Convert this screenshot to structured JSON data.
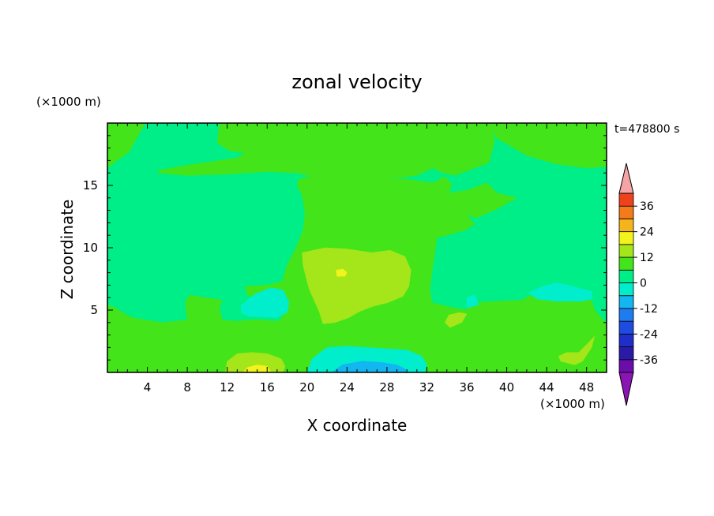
{
  "chart_data": {
    "type": "heatmap",
    "title": "zonal velocity",
    "xlabel": "X coordinate",
    "ylabel": "Z coordinate",
    "x_unit": "(×1000 m)",
    "y_unit": "(×1000 m)",
    "time_label": "t=478800 s",
    "xlim": [
      0,
      50
    ],
    "ylim": [
      0,
      20
    ],
    "x_ticks": [
      4,
      8,
      12,
      16,
      20,
      24,
      28,
      32,
      36,
      40,
      44,
      48
    ],
    "y_ticks": [
      5,
      10,
      15
    ],
    "colorbar": {
      "tick_labels": [
        "36",
        "24",
        "12",
        "0",
        "-12",
        "-24",
        "-36"
      ],
      "tick_values": [
        36,
        24,
        12,
        0,
        -12,
        -24,
        -36
      ],
      "levels": [
        -42,
        -36,
        -30,
        -24,
        -18,
        -12,
        -6,
        0,
        6,
        12,
        18,
        24,
        30,
        36,
        42
      ],
      "colors": [
        "#6a0dab",
        "#2a1aa8",
        "#1f2ec8",
        "#1e4be0",
        "#1e7cf0",
        "#12b6f0",
        "#00eecc",
        "#00ee88",
        "#44e41a",
        "#a4e61a",
        "#f2f21c",
        "#f6b41c",
        "#f47a1c",
        "#ee421c",
        "#e01c1c",
        "#f4a4a4"
      ],
      "under_color": "#8a14b4",
      "over_color": "#f4a4a4"
    },
    "regions": [
      {
        "level": "0 to 6",
        "color": "#44e41a",
        "polygon": [
          [
            0,
            16.4
          ],
          [
            0.8,
            16.9
          ],
          [
            2.2,
            17.7
          ],
          [
            3.0,
            18.9
          ],
          [
            3.8,
            20
          ],
          [
            0,
            20
          ]
        ]
      },
      {
        "level": "0 to 6",
        "color": "#44e41a",
        "polygon": [
          [
            11.2,
            20
          ],
          [
            11.0,
            18.4
          ],
          [
            12.2,
            17.8
          ],
          [
            13.8,
            17.6
          ],
          [
            13.0,
            17.2
          ],
          [
            7.8,
            16.6
          ],
          [
            5.2,
            16.2
          ],
          [
            5.0,
            16.0
          ],
          [
            8.0,
            15.8
          ],
          [
            12.0,
            15.9
          ],
          [
            16.0,
            16.1
          ],
          [
            19.0,
            16.0
          ],
          [
            20.0,
            15.8
          ],
          [
            26.0,
            15.6
          ],
          [
            29.0,
            15.6
          ],
          [
            31.0,
            15.8
          ],
          [
            32.6,
            16.4
          ],
          [
            33.6,
            16.0
          ],
          [
            34.8,
            15.8
          ],
          [
            36.8,
            16.4
          ],
          [
            38.2,
            16.8
          ],
          [
            38.4,
            17.4
          ],
          [
            38.8,
            18.6
          ],
          [
            38.4,
            19.6
          ],
          [
            38.2,
            20
          ]
        ]
      },
      {
        "level": "0 to 6",
        "color": "#44e41a",
        "polygon": [
          [
            38.0,
            20
          ],
          [
            39.0,
            18.8
          ],
          [
            42.0,
            17.4
          ],
          [
            45.0,
            16.7
          ],
          [
            48.0,
            16.4
          ],
          [
            50,
            16.5
          ],
          [
            50,
            20
          ]
        ]
      },
      {
        "level": "0 to 6",
        "color": "#44e41a",
        "polygon": [
          [
            19.2,
            15.5
          ],
          [
            21.0,
            15.9
          ],
          [
            24.0,
            15.8
          ],
          [
            27.0,
            15.6
          ],
          [
            30.0,
            15.5
          ],
          [
            32.6,
            15.2
          ],
          [
            33.8,
            15.7
          ],
          [
            34.5,
            15.1
          ],
          [
            34.2,
            14.4
          ],
          [
            36.0,
            14.6
          ],
          [
            38.0,
            15.2
          ],
          [
            39.0,
            14.4
          ],
          [
            41.0,
            14.0
          ],
          [
            39.0,
            13.1
          ],
          [
            37.0,
            12.4
          ],
          [
            36.0,
            12.6
          ],
          [
            36.8,
            11.9
          ],
          [
            35.8,
            11.4
          ],
          [
            34.0,
            11.0
          ],
          [
            33.0,
            10.8
          ],
          [
            32.8,
            9.6
          ],
          [
            32.5,
            8.0
          ],
          [
            32.3,
            6.6
          ],
          [
            32.5,
            5.6
          ],
          [
            34.0,
            5.3
          ],
          [
            36.0,
            5.0
          ],
          [
            36.5,
            5.6
          ],
          [
            39.0,
            5.7
          ],
          [
            41.5,
            5.8
          ],
          [
            42.5,
            6.2
          ],
          [
            43.2,
            6.6
          ],
          [
            45.0,
            6.7
          ],
          [
            46.0,
            6.0
          ],
          [
            47.0,
            5.8
          ],
          [
            48.5,
            5.8
          ],
          [
            48.8,
            5.0
          ],
          [
            50,
            3.9
          ],
          [
            50,
            0
          ],
          [
            0,
            0
          ],
          [
            0,
            5.4
          ],
          [
            0.8,
            5.2
          ],
          [
            1.5,
            4.8
          ],
          [
            2.5,
            4.4
          ],
          [
            3.8,
            4.2
          ],
          [
            5.5,
            4.0
          ],
          [
            8.0,
            4.2
          ],
          [
            7.8,
            5.6
          ],
          [
            8.2,
            6.2
          ],
          [
            9.8,
            6.0
          ],
          [
            11.5,
            5.8
          ],
          [
            11.2,
            5.1
          ],
          [
            11.5,
            4.2
          ],
          [
            13.0,
            4.1
          ],
          [
            14.0,
            4.2
          ],
          [
            15.8,
            4.2
          ],
          [
            16.7,
            4.1
          ],
          [
            17.4,
            4.2
          ],
          [
            17.5,
            4.6
          ],
          [
            16.8,
            5.6
          ],
          [
            15.2,
            6.0
          ],
          [
            14.0,
            6.2
          ],
          [
            13.8,
            6.9
          ],
          [
            16.0,
            7.0
          ],
          [
            17.5,
            7.3
          ],
          [
            18.0,
            8.6
          ],
          [
            19.0,
            10.2
          ],
          [
            19.6,
            11.4
          ],
          [
            19.8,
            12.8
          ],
          [
            19.5,
            14.2
          ],
          [
            19.0,
            15.0
          ]
        ]
      },
      {
        "level": "6 to 12",
        "color": "#a4e61a",
        "polygon": [
          [
            19.5,
            9.6
          ],
          [
            21.8,
            10.0
          ],
          [
            24.0,
            9.9
          ],
          [
            26.5,
            9.6
          ],
          [
            28.3,
            9.8
          ],
          [
            29.8,
            9.3
          ],
          [
            30.4,
            8.2
          ],
          [
            30.2,
            6.9
          ],
          [
            29.6,
            6.1
          ],
          [
            28.1,
            5.6
          ],
          [
            26.6,
            5.3
          ],
          [
            25.3,
            4.9
          ],
          [
            24.2,
            4.4
          ],
          [
            22.8,
            4.0
          ],
          [
            21.6,
            3.9
          ],
          [
            21.2,
            4.9
          ],
          [
            20.7,
            5.8
          ],
          [
            20.2,
            6.7
          ],
          [
            19.9,
            7.6
          ],
          [
            19.6,
            8.6
          ]
        ]
      },
      {
        "level": "6 to 12",
        "color": "#a4e61a",
        "polygon": [
          [
            34.2,
            4.6
          ],
          [
            35.2,
            4.8
          ],
          [
            36.0,
            4.7
          ],
          [
            35.5,
            4.0
          ],
          [
            34.3,
            3.6
          ],
          [
            33.8,
            4.0
          ]
        ]
      },
      {
        "level": "6 to 12",
        "color": "#a4e61a",
        "polygon": [
          [
            46.0,
            1.6
          ],
          [
            47.2,
            1.6
          ],
          [
            48.2,
            2.4
          ],
          [
            48.8,
            2.9
          ],
          [
            48.5,
            2.0
          ],
          [
            47.6,
            0.9
          ],
          [
            46.8,
            0.6
          ],
          [
            45.4,
            0.9
          ],
          [
            45.2,
            1.3
          ]
        ]
      },
      {
        "level": "6 to 12",
        "color": "#a4e61a",
        "polygon": [
          [
            11.8,
            0
          ],
          [
            12.0,
            0.9
          ],
          [
            13.0,
            1.5
          ],
          [
            14.5,
            1.6
          ],
          [
            16.0,
            1.5
          ],
          [
            17.4,
            1.1
          ],
          [
            17.8,
            0.5
          ],
          [
            17.6,
            0
          ]
        ]
      },
      {
        "level": "12 to 18",
        "color": "#f2f21c",
        "polygon": [
          [
            22.9,
            8.2
          ],
          [
            23.6,
            8.3
          ],
          [
            24.0,
            8.0
          ],
          [
            23.8,
            7.7
          ],
          [
            23.0,
            7.7
          ]
        ]
      },
      {
        "level": "12 to 18",
        "color": "#f2f21c",
        "polygon": [
          [
            13.6,
            0
          ],
          [
            14.0,
            0.4
          ],
          [
            15.0,
            0.6
          ],
          [
            16.0,
            0.5
          ],
          [
            16.4,
            0
          ]
        ]
      },
      {
        "level": "-6 to 0",
        "color": "#00eecc",
        "polygon": [
          [
            13.4,
            5.4
          ],
          [
            14.8,
            6.3
          ],
          [
            16.4,
            6.8
          ],
          [
            17.6,
            6.6
          ],
          [
            18.2,
            5.6
          ],
          [
            18.0,
            4.8
          ],
          [
            17.0,
            4.4
          ],
          [
            14.2,
            4.5
          ],
          [
            13.4,
            4.8
          ]
        ]
      },
      {
        "level": "-6 to 0",
        "color": "#00eecc",
        "polygon": [
          [
            42.2,
            6.4
          ],
          [
            43.6,
            6.9
          ],
          [
            45.0,
            7.2
          ],
          [
            46.6,
            6.9
          ],
          [
            48.5,
            6.5
          ],
          [
            48.6,
            5.9
          ],
          [
            47.5,
            5.7
          ],
          [
            45.0,
            5.7
          ],
          [
            43.0,
            5.9
          ]
        ]
      },
      {
        "level": "-6 to 0",
        "color": "#00eecc",
        "polygon": [
          [
            20.0,
            0
          ],
          [
            20.5,
            1.1
          ],
          [
            22.0,
            2.0
          ],
          [
            24.0,
            2.1
          ],
          [
            26.0,
            2.0
          ],
          [
            28.0,
            1.9
          ],
          [
            30.0,
            1.8
          ],
          [
            31.5,
            1.3
          ],
          [
            32.0,
            0.6
          ],
          [
            31.8,
            0
          ]
        ]
      },
      {
        "level": "-12 to -6",
        "color": "#12b6f0",
        "polygon": [
          [
            22.5,
            0
          ],
          [
            23.5,
            0.6
          ],
          [
            25.5,
            0.9
          ],
          [
            27.5,
            0.8
          ],
          [
            29.0,
            0.6
          ],
          [
            30.0,
            0.2
          ],
          [
            30.0,
            0
          ]
        ]
      },
      {
        "level": "-6 to 0",
        "color": "#00eecc",
        "polygon": [
          [
            36.0,
            5.2
          ],
          [
            37.2,
            5.4
          ],
          [
            36.8,
            6.2
          ],
          [
            36.0,
            6.0
          ]
        ]
      }
    ]
  }
}
